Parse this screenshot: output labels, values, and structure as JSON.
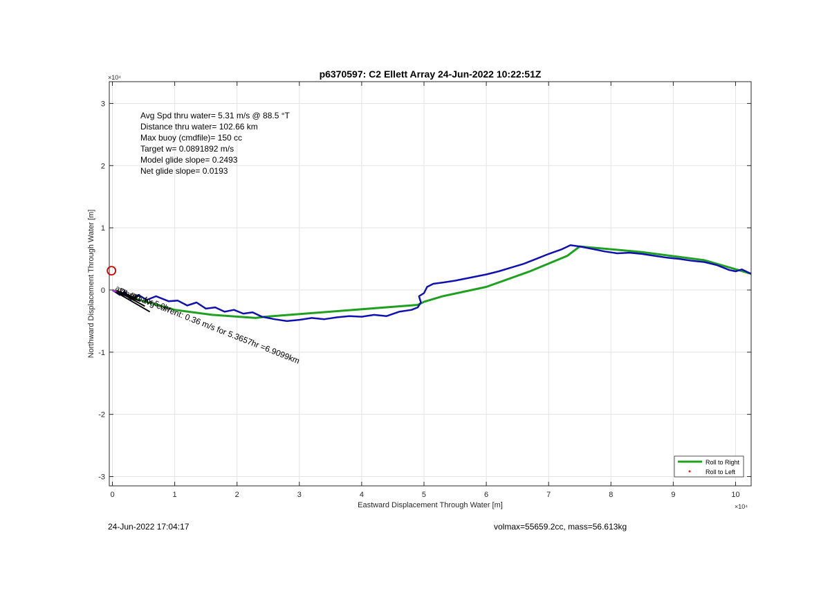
{
  "chart_data": {
    "type": "line",
    "title": "p6370597: C2 Ellett Array 24-Jun-2022 10:22:51Z",
    "xlabel": "Eastward Displacement Through Water [m]",
    "ylabel": "Northward Displacement Through Water [m]",
    "x_exponent": "×10⁴",
    "y_exponent": "×10⁴",
    "xlim": [
      -500,
      102500
    ],
    "ylim": [
      -31500,
      33500
    ],
    "xticks": [
      0,
      10000,
      20000,
      30000,
      40000,
      50000,
      60000,
      70000,
      80000,
      90000,
      100000
    ],
    "xtick_labels": [
      "0",
      "1",
      "2",
      "3",
      "4",
      "5",
      "6",
      "7",
      "8",
      "9",
      "10"
    ],
    "yticks": [
      -30000,
      -20000,
      -10000,
      0,
      10000,
      20000,
      30000
    ],
    "ytick_labels": [
      "-3",
      "-2",
      "-1",
      "0",
      "1",
      "2",
      "3"
    ],
    "grid": true,
    "legend_position": "bottom-right",
    "series": [
      {
        "name": "Roll to Right",
        "color": "#20a020",
        "x": [
          0,
          4000,
          10000,
          16000,
          23000,
          24500,
          49000,
          50000,
          53000,
          60000,
          67000,
          73000,
          75000,
          85000,
          95000,
          102500
        ],
        "y": [
          0,
          -1500,
          -3200,
          -4000,
          -4500,
          -4300,
          -2400,
          -1900,
          -1000,
          500,
          3000,
          5500,
          7000,
          6100,
          4800,
          2600
        ]
      },
      {
        "name": "Roll to Left",
        "color": "#e02020",
        "x": [],
        "y": []
      },
      {
        "name": "",
        "color": "#1010b0",
        "x": [
          0,
          1200,
          2000,
          3000,
          4200,
          5500,
          7000,
          9000,
          10500,
          12000,
          13500,
          15000,
          16500,
          18000,
          19500,
          21000,
          22500,
          24000,
          26000,
          28000,
          30000,
          32000,
          34000,
          36000,
          38000,
          40000,
          42000,
          44000,
          46000,
          48000,
          49000,
          49500,
          49200,
          50000,
          50500,
          51500,
          53000,
          55000,
          57500,
          60000,
          62000,
          64000,
          66000,
          68000,
          70000,
          72000,
          73500,
          75000,
          77000,
          79000,
          81000,
          83000,
          85000,
          87000,
          89000,
          91000,
          93000,
          95000,
          97000,
          99000,
          100000,
          101000,
          102500
        ],
        "y": [
          0,
          -800,
          -300,
          -1500,
          -800,
          -1600,
          -1000,
          -1800,
          -1700,
          -2500,
          -2000,
          -3000,
          -2800,
          -3500,
          -3200,
          -3800,
          -3600,
          -4300,
          -4700,
          -5000,
          -4800,
          -4500,
          -4700,
          -4400,
          -4200,
          -4300,
          -4000,
          -4200,
          -3500,
          -3200,
          -2800,
          -2000,
          -1000,
          -500,
          500,
          1000,
          1200,
          1500,
          2000,
          2500,
          3000,
          3600,
          4200,
          5000,
          5800,
          6500,
          7200,
          7000,
          6600,
          6200,
          5900,
          6000,
          5800,
          5500,
          5200,
          5000,
          4700,
          4500,
          4000,
          3200,
          3000,
          3300,
          2600
        ]
      },
      {
        "name": "",
        "color": "#e020e0",
        "x": [
          0,
          1400,
          2200
        ],
        "y": [
          0,
          -700,
          -900
        ]
      }
    ],
    "markers": [
      {
        "shape": "circle",
        "color": "#cc0000",
        "x": -150,
        "y": 3100
      }
    ],
    "vectors": [
      {
        "color": "#000000",
        "x0": 500,
        "y0": -300,
        "x1": 6000,
        "y1": -3500
      },
      {
        "color": "#000000",
        "x0": 800,
        "y0": -200,
        "x1": 5200,
        "y1": -2600
      },
      {
        "color": "#000000",
        "x0": 1000,
        "y0": -500,
        "x1": 4500,
        "y1": -1800
      },
      {
        "color": "#000000",
        "x0": 700,
        "y0": -100,
        "x1": 3800,
        "y1": -1300
      }
    ],
    "annotations": [
      "Avg Spd thru water=  5.31 m/s @  88.5 °T",
      "Distance thru water= 102.66 km",
      "Max buoy (cmdfile)= 150 cc",
      "Target w= 0.0891892 m/s",
      "Model glide slope= 0.2493",
      "Net glide slope= 0.0193"
    ],
    "rotated_labels": [
      {
        "text": "Depth avg current: 0.36 m/s for 5.3657hr =6.9099km",
        "x": 1000,
        "y": -500
      },
      {
        "text": "avg. m/s for 5.0hr",
        "x": 400,
        "y": 0
      }
    ]
  },
  "footer": {
    "left": "24-Jun-2022 17:04:17",
    "right": "volmax=55659.2cc, mass=56.613kg"
  }
}
